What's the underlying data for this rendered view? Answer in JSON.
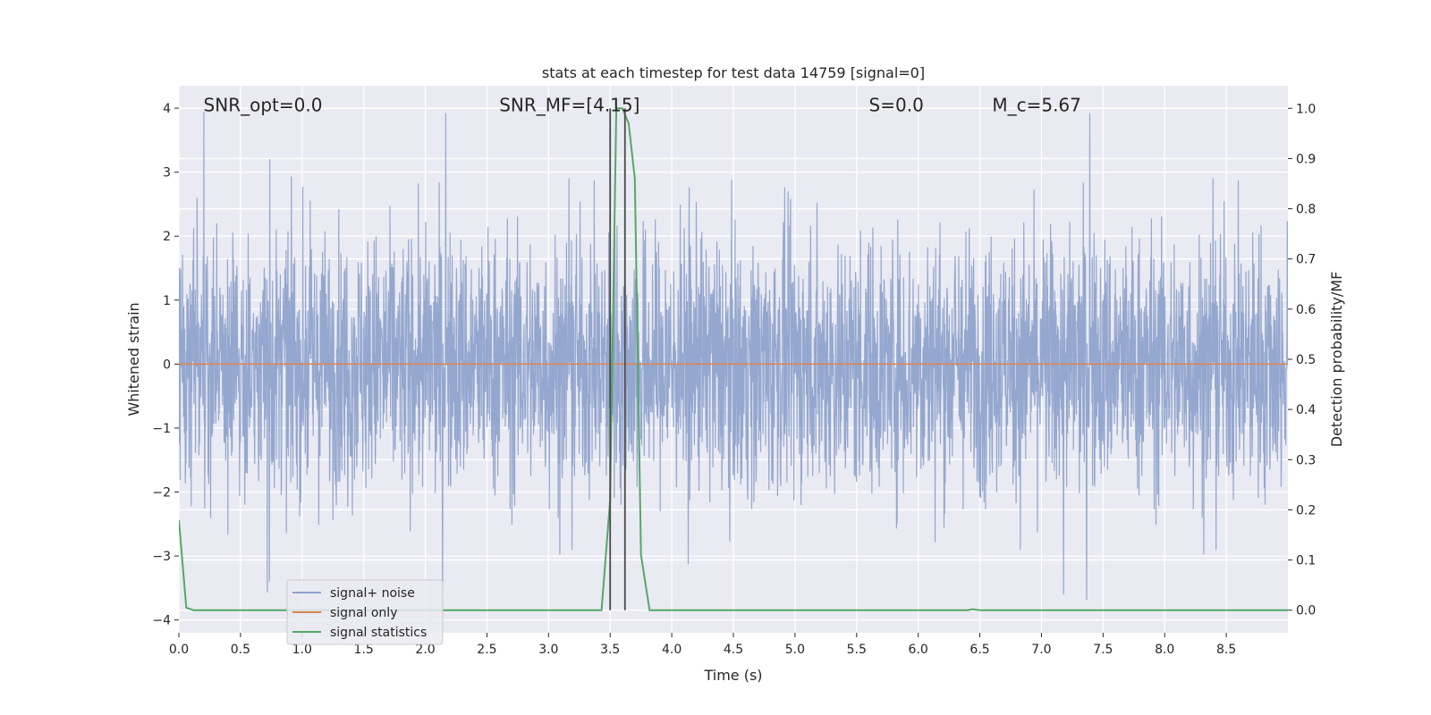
{
  "chart_data": {
    "type": "line",
    "title": "stats at each timestep for test data 14759 [signal=0]",
    "xlabel": "Time (s)",
    "ylabel_left": "Whitened strain",
    "ylabel_right": "Detection probability/MF",
    "xlim": [
      0.0,
      9.0
    ],
    "ylim_left": [
      -4.2,
      4.35
    ],
    "ylim_right": [
      -0.045,
      1.045
    ],
    "x_ticks": [
      "0.0",
      "0.5",
      "1.0",
      "1.5",
      "2.0",
      "2.5",
      "3.0",
      "3.5",
      "4.0",
      "4.5",
      "5.0",
      "5.5",
      "6.0",
      "6.5",
      "7.0",
      "7.5",
      "8.0",
      "8.5"
    ],
    "y_left_ticks": [
      "4",
      "3",
      "2",
      "1",
      "0",
      "−1",
      "−2",
      "−3",
      "−4"
    ],
    "y_right_ticks": [
      "1.0",
      "0.9",
      "0.8",
      "0.7",
      "0.6",
      "0.5",
      "0.4",
      "0.3",
      "0.2",
      "0.1",
      "0.0"
    ],
    "grid": true,
    "legend_placement": "lower-left",
    "annotations": [
      {
        "id": "snr-opt",
        "text": "SNR_opt=0.0",
        "x": 0.2,
        "y": 4.05
      },
      {
        "id": "snr-mf",
        "text": "SNR_MF=[4.15]",
        "x": 2.6,
        "y": 4.05
      },
      {
        "id": "s-val",
        "text": "S=0.0",
        "x": 5.6,
        "y": 4.05
      },
      {
        "id": "mc-val",
        "text": "M_c=5.67",
        "x": 6.6,
        "y": 4.05
      }
    ],
    "vlines": [
      3.5,
      3.62
    ],
    "series": [
      {
        "name": "signal+ noise",
        "color": "#8fa3cc",
        "axis": "left",
        "style": "whitened noise, spread ±1.1, peaks to ±4",
        "x_range": [
          0.0,
          9.0
        ]
      },
      {
        "name": "signal only",
        "color": "#dd8452",
        "axis": "left",
        "x": [
          0.0,
          9.0
        ],
        "y": [
          0.0,
          0.0
        ]
      },
      {
        "name": "signal statistics",
        "color": "#55a868",
        "axis": "right",
        "x": [
          0.0,
          0.06,
          0.12,
          3.43,
          3.5,
          3.55,
          3.6,
          3.65,
          3.7,
          3.75,
          3.82,
          6.4,
          6.44,
          6.5,
          9.0
        ],
        "y": [
          0.18,
          0.005,
          0.0,
          0.0,
          0.22,
          1.0,
          1.0,
          0.97,
          0.86,
          0.11,
          0.0,
          0.0,
          0.002,
          0.0,
          0.0
        ]
      }
    ]
  }
}
